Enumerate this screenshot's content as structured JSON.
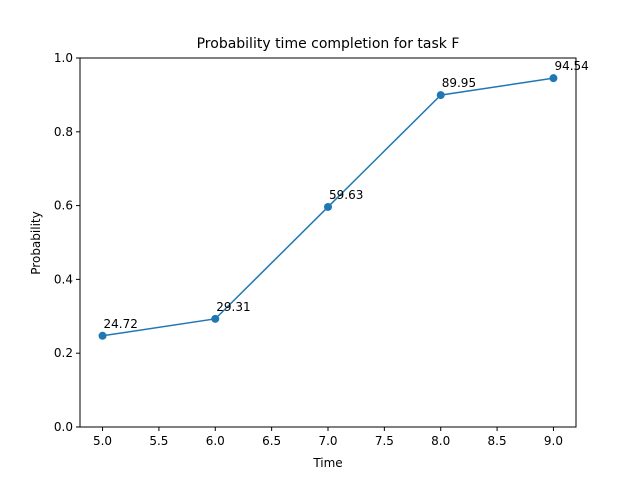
{
  "chart_data": {
    "type": "line",
    "title": "Probability time completion for task F",
    "xlabel": "Time",
    "ylabel": "Probability",
    "x": [
      5.0,
      6.0,
      7.0,
      8.0,
      9.0
    ],
    "series": [
      {
        "values": [
          0.2472,
          0.2931,
          0.5963,
          0.8995,
          0.9454
        ],
        "data_labels": [
          "24.72",
          "29.31",
          "59.63",
          "89.95",
          "94.54"
        ],
        "color": "#1f77b4",
        "marker": "circle"
      }
    ],
    "xlim": [
      4.8,
      9.2
    ],
    "ylim": [
      0.0,
      1.0
    ],
    "xticks": [
      5.0,
      5.5,
      6.0,
      6.5,
      7.0,
      7.5,
      8.0,
      8.5,
      9.0
    ],
    "xtick_labels": [
      "5.0",
      "5.5",
      "6.0",
      "6.5",
      "7.0",
      "7.5",
      "8.0",
      "8.5",
      "9.0"
    ],
    "yticks": [
      0.0,
      0.2,
      0.4,
      0.6,
      0.8,
      1.0
    ],
    "ytick_labels": [
      "0.0",
      "0.2",
      "0.4",
      "0.6",
      "0.8",
      "1.0"
    ],
    "grid": false,
    "legend": "none"
  }
}
